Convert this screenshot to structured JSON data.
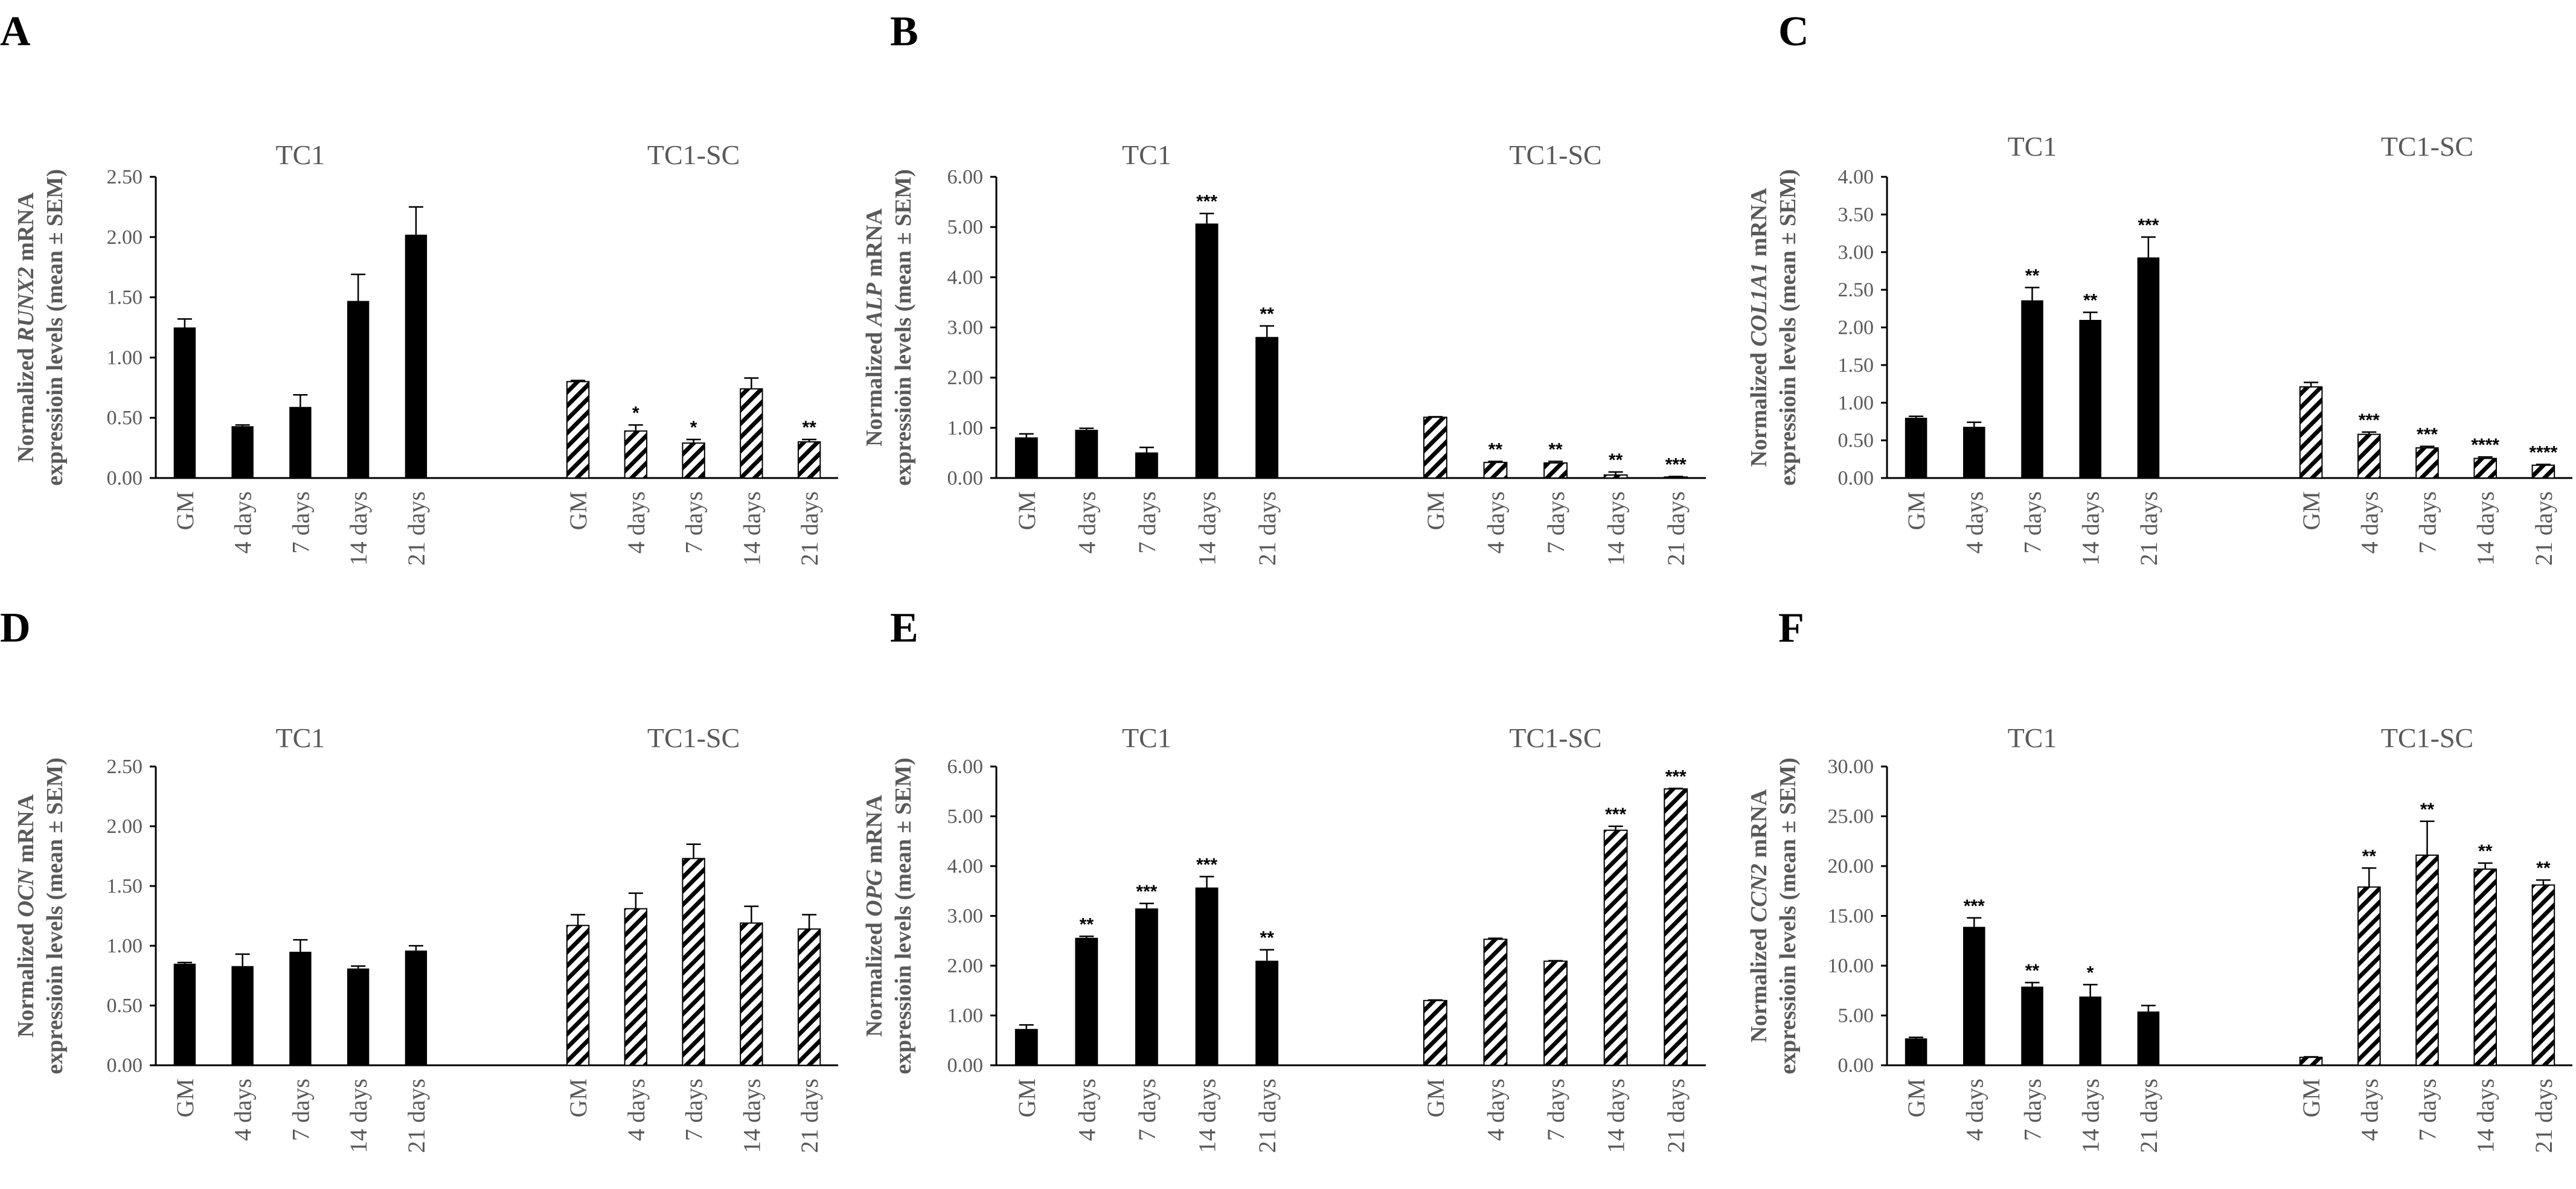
{
  "colors": {
    "solid": "#000000",
    "text": "#595959",
    "background": "#ffffff"
  },
  "hatch_pattern_name": "diagonal-stripes",
  "chart_data": [
    {
      "panel": "A",
      "type": "bar",
      "groups": [
        "TC1",
        "TC1-SC"
      ],
      "categories": [
        "GM",
        "4 days",
        "7 days",
        "14 days",
        "21 days"
      ],
      "ylabel_prefix": "Normalized ",
      "gene": "RUNX2",
      "ylabel_suffix": " mRNA",
      "ylabel_line2": "expressioin levels (mean ± SEM)",
      "ylim": [
        0,
        2.5
      ],
      "yticks": [
        "0.00",
        "0.50",
        "1.00",
        "1.50",
        "2.00",
        "2.50"
      ],
      "series": [
        {
          "name": "TC1",
          "pattern": "solid",
          "values": [
            1.25,
            0.43,
            0.59,
            1.47,
            2.02
          ],
          "errors": [
            0.07,
            0.01,
            0.1,
            0.22,
            0.23
          ],
          "sig": [
            "",
            "",
            "",
            "",
            ""
          ]
        },
        {
          "name": "TC1-SC",
          "pattern": "hatched",
          "values": [
            0.8,
            0.39,
            0.29,
            0.74,
            0.3
          ],
          "errors": [
            0.01,
            0.05,
            0.03,
            0.09,
            0.02
          ],
          "sig": [
            "",
            "*",
            "*",
            "",
            "**"
          ]
        }
      ]
    },
    {
      "panel": "B",
      "type": "bar",
      "groups": [
        "TC1",
        "TC1-SC"
      ],
      "categories": [
        "GM",
        "4 days",
        "7 days",
        "14 days",
        "21 days"
      ],
      "ylabel_prefix": "Normalized ",
      "gene": "ALP",
      "ylabel_suffix": " mRNA",
      "ylabel_line2": "expressioin levels (mean ± SEM)",
      "ylim": [
        0,
        6
      ],
      "yticks": [
        "0.00",
        "1.00",
        "2.00",
        "3.00",
        "4.00",
        "5.00",
        "6.00"
      ],
      "series": [
        {
          "name": "TC1",
          "pattern": "solid",
          "values": [
            0.81,
            0.96,
            0.51,
            5.07,
            2.81
          ],
          "errors": [
            0.07,
            0.03,
            0.1,
            0.2,
            0.22
          ],
          "sig": [
            "",
            "",
            "",
            "***",
            "**"
          ]
        },
        {
          "name": "TC1-SC",
          "pattern": "hatched",
          "values": [
            1.21,
            0.31,
            0.3,
            0.06,
            0.02
          ],
          "errors": [
            0.01,
            0.02,
            0.03,
            0.06,
            0.01
          ],
          "sig": [
            "",
            "**",
            "**",
            "**",
            "***"
          ]
        }
      ]
    },
    {
      "panel": "C",
      "type": "bar",
      "groups": [
        "TC1",
        "TC1-SC"
      ],
      "categories": [
        "GM",
        "4 days",
        "7 days",
        "14 days",
        "21 days"
      ],
      "ylabel_prefix": "Normalized ",
      "gene": "COL1A1",
      "ylabel_suffix": " mRNA",
      "ylabel_line2": "expressioin levels (mean ± SEM)",
      "ylim": [
        0,
        4
      ],
      "yticks": [
        "0.00",
        "0.50",
        "1.00",
        "1.50",
        "2.00",
        "2.50",
        "3.00",
        "3.50",
        "4.00"
      ],
      "series": [
        {
          "name": "TC1",
          "pattern": "solid",
          "values": [
            0.8,
            0.68,
            2.36,
            2.1,
            2.93
          ],
          "errors": [
            0.02,
            0.06,
            0.17,
            0.1,
            0.27
          ],
          "sig": [
            "",
            "",
            "**",
            "**",
            "***"
          ]
        },
        {
          "name": "TC1-SC",
          "pattern": "hatched",
          "values": [
            1.21,
            0.58,
            0.4,
            0.26,
            0.17
          ],
          "errors": [
            0.06,
            0.03,
            0.02,
            0.02,
            0.01
          ],
          "sig": [
            "",
            "***",
            "***",
            "****",
            "****"
          ]
        }
      ]
    },
    {
      "panel": "D",
      "type": "bar",
      "groups": [
        "TC1",
        "TC1-SC"
      ],
      "categories": [
        "GM",
        "4 days",
        "7 days",
        "14 days",
        "21 days"
      ],
      "ylabel_prefix": "Normalized ",
      "gene": "OCN",
      "ylabel_suffix": " mRNA",
      "ylabel_line2": "expressioin levels (mean ± SEM)",
      "ylim": [
        0,
        2.5
      ],
      "yticks": [
        "0.00",
        "0.50",
        "1.00",
        "1.50",
        "2.00",
        "2.50"
      ],
      "series": [
        {
          "name": "TC1",
          "pattern": "solid",
          "values": [
            0.85,
            0.83,
            0.95,
            0.81,
            0.96
          ],
          "errors": [
            0.01,
            0.1,
            0.1,
            0.02,
            0.04
          ],
          "sig": [
            "",
            "",
            "",
            "",
            ""
          ]
        },
        {
          "name": "TC1-SC",
          "pattern": "hatched",
          "values": [
            1.17,
            1.31,
            1.73,
            1.19,
            1.14
          ],
          "errors": [
            0.09,
            0.13,
            0.12,
            0.14,
            0.12
          ],
          "sig": [
            "",
            "",
            "",
            "",
            ""
          ]
        }
      ]
    },
    {
      "panel": "E",
      "type": "bar",
      "groups": [
        "TC1",
        "TC1-SC"
      ],
      "categories": [
        "GM",
        "4 days",
        "7 days",
        "14 days",
        "21 days"
      ],
      "ylabel_prefix": "Normalized ",
      "gene": "OPG",
      "ylabel_suffix": " mRNA",
      "ylabel_line2": "expressioin levels (mean ± SEM)",
      "ylim": [
        0,
        6
      ],
      "yticks": [
        "0.00",
        "1.00",
        "2.00",
        "3.00",
        "4.00",
        "5.00",
        "6.00"
      ],
      "series": [
        {
          "name": "TC1",
          "pattern": "solid",
          "values": [
            0.73,
            2.56,
            3.15,
            3.57,
            2.1
          ],
          "errors": [
            0.08,
            0.03,
            0.1,
            0.22,
            0.22
          ],
          "sig": [
            "",
            "**",
            "***",
            "***",
            "**"
          ]
        },
        {
          "name": "TC1-SC",
          "pattern": "hatched",
          "values": [
            1.3,
            2.53,
            2.09,
            4.72,
            5.55
          ],
          "errors": [
            0.01,
            0.02,
            0.01,
            0.08,
            0.01
          ],
          "sig": [
            "",
            "",
            "",
            "***",
            "***"
          ]
        }
      ]
    },
    {
      "panel": "F",
      "type": "bar",
      "groups": [
        "TC1",
        "TC1-SC"
      ],
      "categories": [
        "GM",
        "4 days",
        "7 days",
        "14 days",
        "21 days"
      ],
      "ylabel_prefix": "Normalized ",
      "gene": "CCN2",
      "ylabel_suffix": " mRNA",
      "ylabel_line2": "expressioin levels (mean ± SEM)",
      "ylim": [
        0,
        30
      ],
      "yticks": [
        "0.00",
        "5.00",
        "10.00",
        "15.00",
        "20.00",
        "25.00",
        "30.00"
      ],
      "series": [
        {
          "name": "TC1",
          "pattern": "solid",
          "values": [
            2.7,
            13.9,
            7.9,
            6.9,
            5.4
          ],
          "errors": [
            0.1,
            0.9,
            0.4,
            1.2,
            0.6
          ],
          "sig": [
            "",
            "***",
            "**",
            "*",
            ""
          ]
        },
        {
          "name": "TC1-SC",
          "pattern": "hatched",
          "values": [
            0.8,
            17.9,
            21.1,
            19.7,
            18.1
          ],
          "errors": [
            0.05,
            1.9,
            3.4,
            0.6,
            0.5
          ],
          "sig": [
            "",
            "**",
            "**",
            "**",
            "**"
          ]
        }
      ]
    }
  ]
}
